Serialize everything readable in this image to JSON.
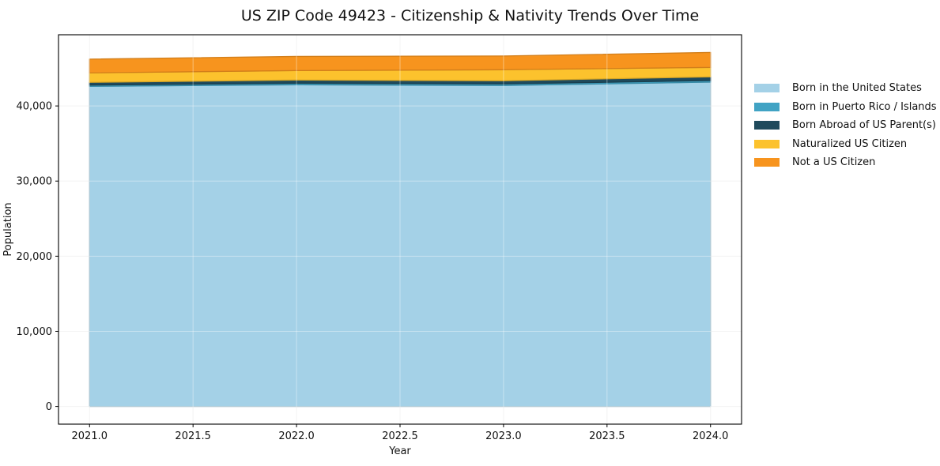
{
  "title": "US ZIP Code 49423 - Citizenship & Nativity Trends Over Time",
  "chart_data": {
    "type": "area",
    "stacked": true,
    "title": "US ZIP Code 49423 - Citizenship & Nativity Trends Over Time",
    "xlabel": "Year",
    "ylabel": "Population",
    "x": [
      2021,
      2022,
      2023,
      2024
    ],
    "series": [
      {
        "name": "Born in the United States",
        "color": "#A4D1E7",
        "values": [
          42610,
          42820,
          42720,
          43170
        ]
      },
      {
        "name": "Born in Puerto Rico / Islands",
        "color": "#41A3C4",
        "values": [
          160,
          210,
          210,
          210
        ]
      },
      {
        "name": "Born Abroad of US Parent(s)",
        "color": "#1F4A5C",
        "values": [
          370,
          420,
          420,
          490
        ]
      },
      {
        "name": "Naturalized US Citizen",
        "color": "#FCC22D",
        "values": [
          1260,
          1260,
          1470,
          1260
        ]
      },
      {
        "name": "Not a US Citizen",
        "color": "#F7941E",
        "values": [
          1830,
          1880,
          1830,
          1990
        ]
      }
    ],
    "stacked_totals": [
      46230,
      46590,
      46650,
      47120
    ],
    "xlim": [
      2020.85,
      2024.15
    ],
    "ylim": [
      -2356,
      49476
    ],
    "xticks": {
      "values": [
        2021.0,
        2021.5,
        2022.0,
        2022.5,
        2023.0,
        2023.5,
        2024.0
      ],
      "labels": [
        "2021.0",
        "2021.5",
        "2022.0",
        "2022.5",
        "2023.0",
        "2023.5",
        "2024.0"
      ]
    },
    "yticks": {
      "values": [
        0,
        10000,
        20000,
        30000,
        40000
      ],
      "labels": [
        "0",
        "10,000",
        "20,000",
        "30,000",
        "40,000"
      ]
    },
    "grid": true,
    "legend_position": "right-outside"
  }
}
